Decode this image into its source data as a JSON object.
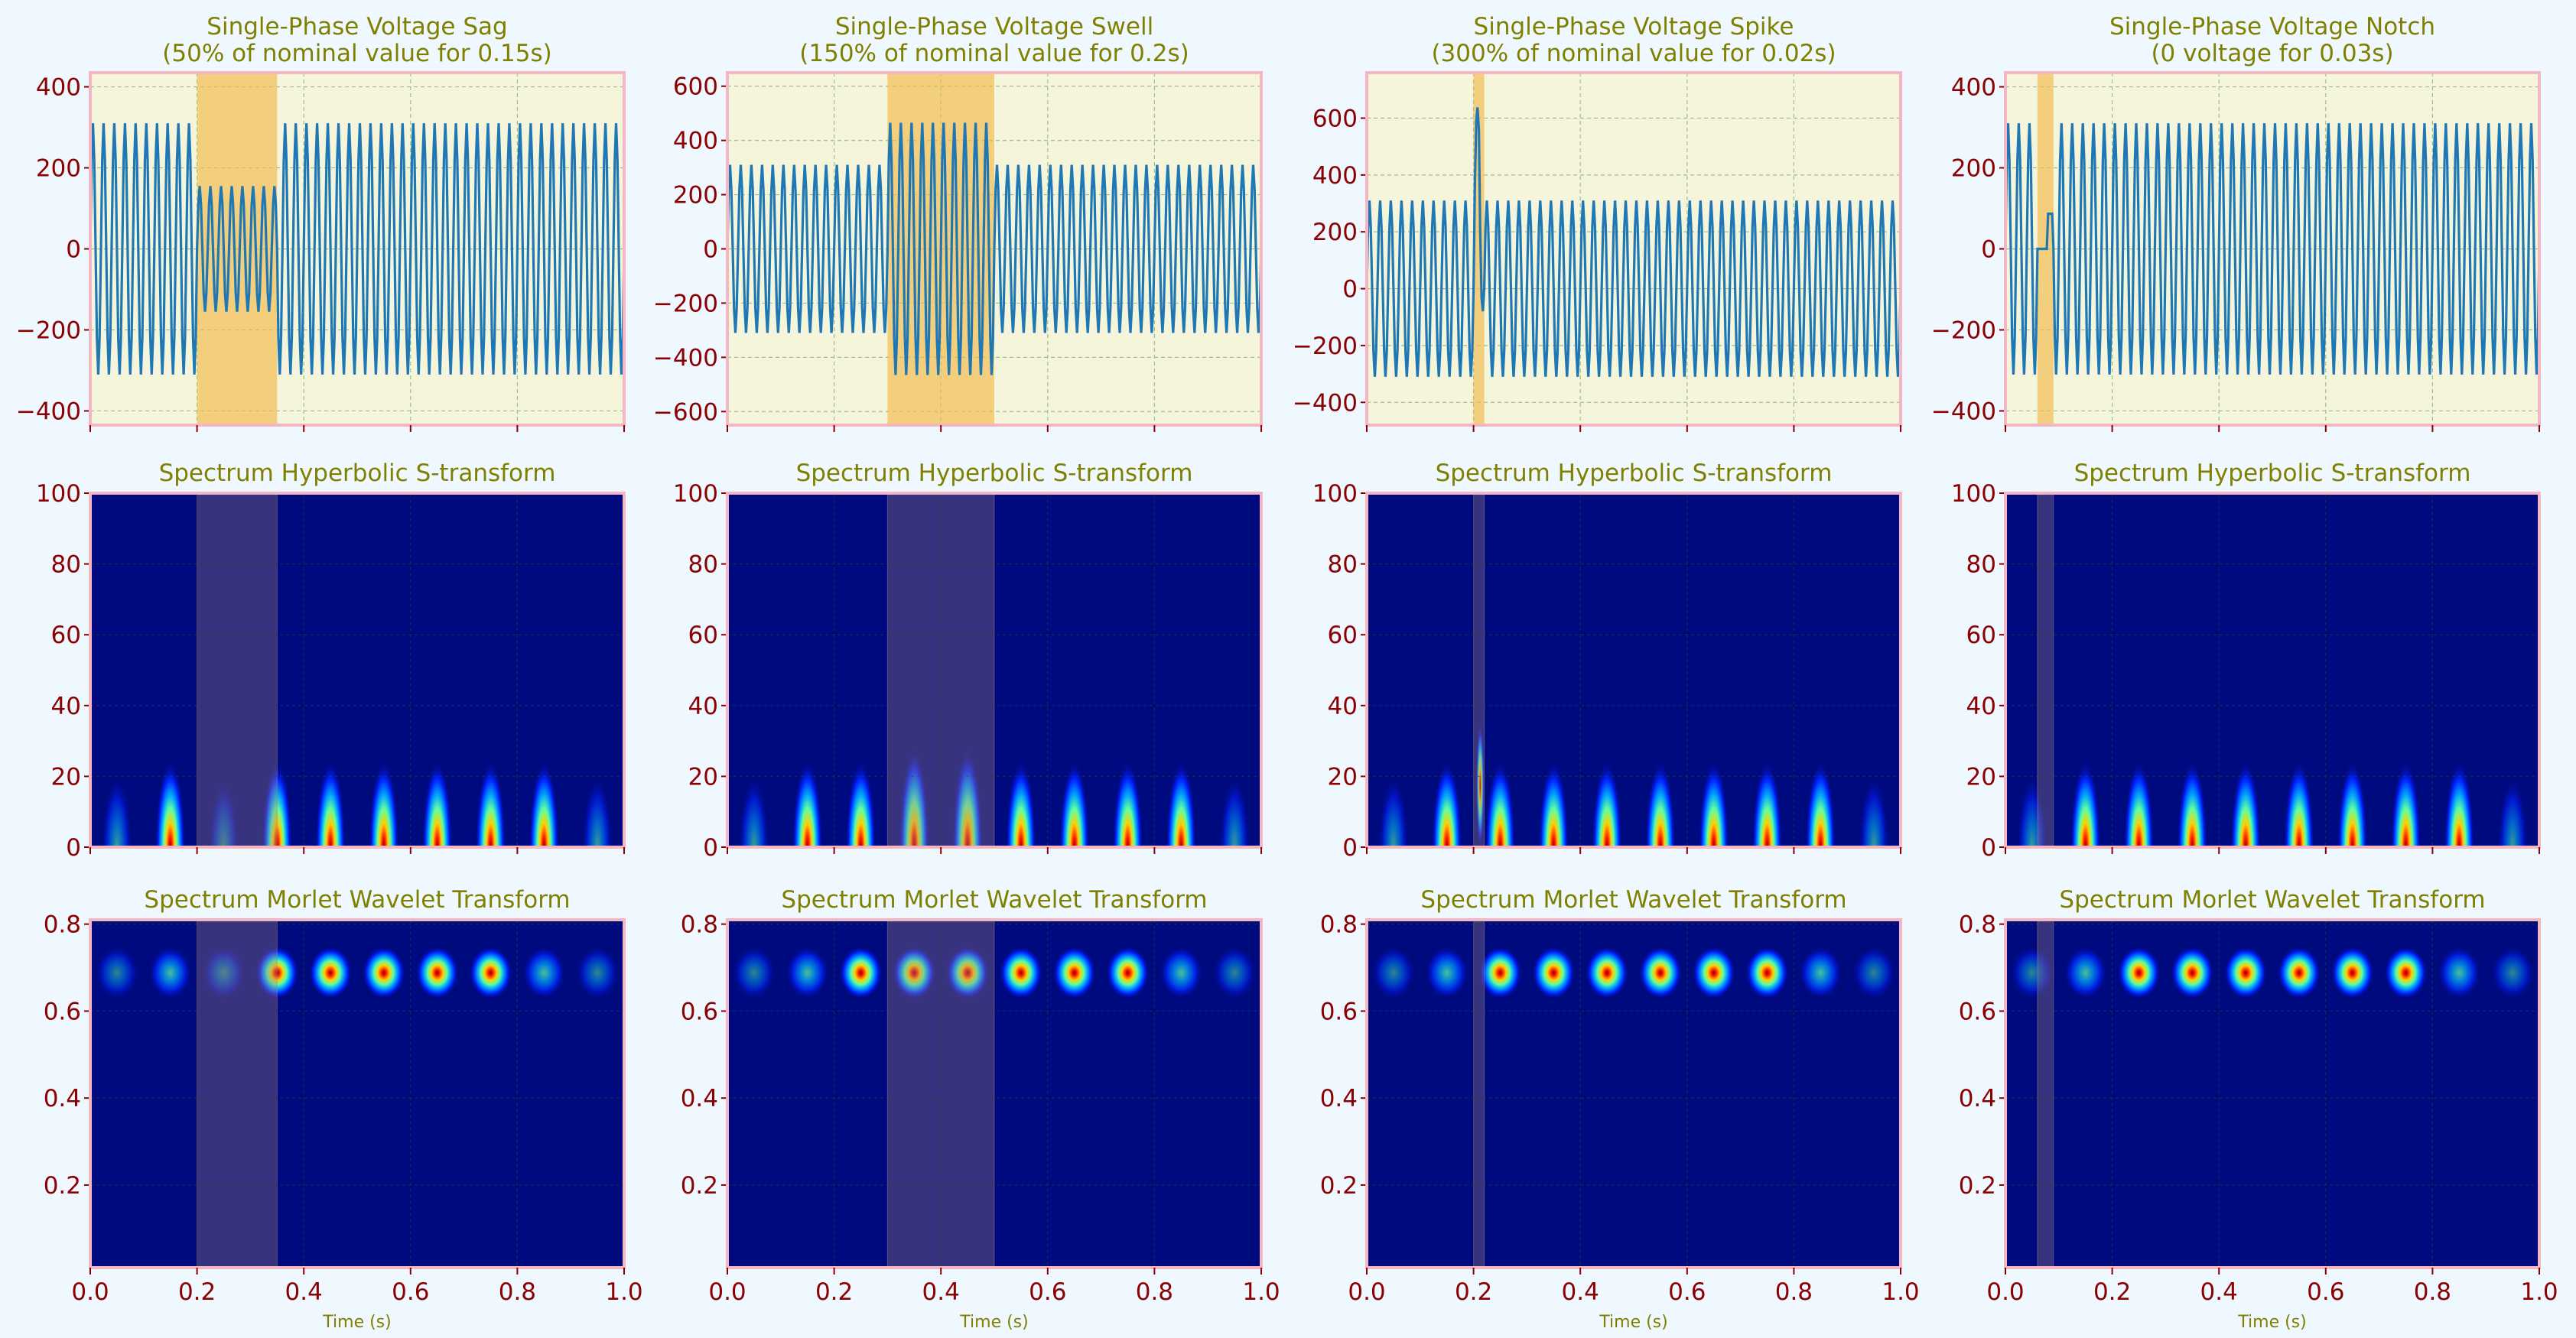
{
  "chart_data": [
    {
      "type": "line",
      "panel": "sag",
      "title": "Single-Phase Voltage Sag",
      "subtitle": "(50% of nominal value for 0.15s)",
      "signal": {
        "amplitude": 310,
        "frequency_hz": 50,
        "disturbance": "sag",
        "start": 0.2,
        "end": 0.35,
        "factor": 0.5
      },
      "xlim": [
        0,
        1
      ],
      "ylim": [
        -435,
        435
      ],
      "yticks": [
        -400,
        -200,
        0,
        200,
        400
      ],
      "grid": true,
      "line_color": "#1f77b4",
      "highlight_color": "#f0b94a"
    },
    {
      "type": "line",
      "panel": "swell",
      "title": "Single-Phase Voltage Swell",
      "subtitle": "(150% of nominal value for 0.2s)",
      "signal": {
        "amplitude": 310,
        "frequency_hz": 50,
        "disturbance": "swell",
        "start": 0.3,
        "end": 0.5,
        "factor": 1.5
      },
      "xlim": [
        0,
        1
      ],
      "ylim": [
        -650,
        650
      ],
      "yticks": [
        -600,
        -400,
        -200,
        0,
        200,
        400,
        600
      ],
      "grid": true,
      "line_color": "#1f77b4",
      "highlight_color": "#f0b94a"
    },
    {
      "type": "line",
      "panel": "spike",
      "title": "Single-Phase Voltage Spike",
      "subtitle": "(300% of nominal value for 0.02s)",
      "signal": {
        "amplitude": 310,
        "frequency_hz": 50,
        "disturbance": "spike",
        "start": 0.2,
        "end": 0.22,
        "factor": 3.0
      },
      "xlim": [
        0,
        1
      ],
      "ylim": [
        -480,
        760
      ],
      "yticks": [
        -400,
        -200,
        0,
        200,
        400,
        600
      ],
      "grid": true,
      "line_color": "#1f77b4",
      "highlight_color": "#f0b94a"
    },
    {
      "type": "line",
      "panel": "notch",
      "title": "Single-Phase Voltage Notch",
      "subtitle": "(0 voltage for 0.03s)",
      "signal": {
        "amplitude": 310,
        "frequency_hz": 50,
        "disturbance": "notch",
        "start": 0.06,
        "end": 0.09,
        "factor": 0
      },
      "xlim": [
        0,
        1
      ],
      "ylim": [
        -435,
        435
      ],
      "yticks": [
        -400,
        -200,
        0,
        200,
        400
      ],
      "grid": true,
      "line_color": "#1f77b4",
      "highlight_color": "#f0b94a"
    },
    {
      "type": "heatmap",
      "transform": "s",
      "title": "Spectrum Hyperbolic S-transform",
      "xlim": [
        0,
        1
      ],
      "ylim": [
        0,
        100
      ],
      "yticks": [
        0,
        20,
        40,
        60,
        80,
        100
      ],
      "colormap": "jet"
    },
    {
      "type": "heatmap",
      "transform": "morlet",
      "title": "Spectrum Morlet Wavelet Transform",
      "xlim": [
        0,
        1
      ],
      "ylim": [
        0.01,
        0.81
      ],
      "yticks": [
        0.2,
        0.4,
        0.6,
        0.8
      ],
      "xticks": [
        "0.0",
        "0.2",
        "0.4",
        "0.6",
        "0.8",
        "1.0"
      ],
      "xlabel": "Time (s)",
      "colormap": "jet"
    }
  ]
}
